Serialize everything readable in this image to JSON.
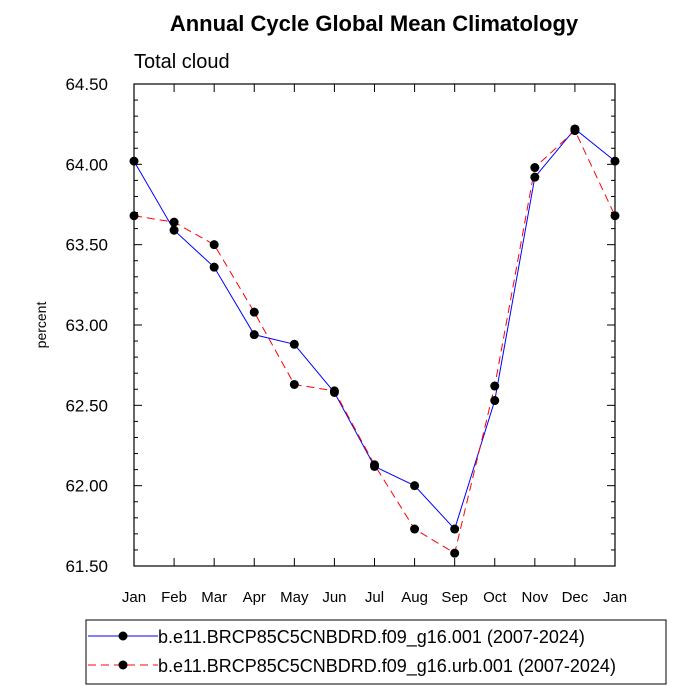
{
  "chart_data": {
    "type": "line",
    "title": "Annual Cycle Global Mean Climatology",
    "subtitle": "Total cloud",
    "xlabel": "",
    "ylabel": "percent",
    "categories": [
      "Jan",
      "Feb",
      "Mar",
      "Apr",
      "May",
      "Jun",
      "Jul",
      "Aug",
      "Sep",
      "Oct",
      "Nov",
      "Dec",
      "Jan"
    ],
    "ylim": [
      61.5,
      64.5
    ],
    "yticks": [
      "61.50",
      "62.00",
      "62.50",
      "63.00",
      "63.50",
      "64.00",
      "64.50"
    ],
    "grid": false,
    "legend_position": "bottom",
    "series": [
      {
        "name": "b.e11.BRCP85C5CNBDRD.f09_g16.001 (2007-2024)",
        "color": "#0000ff",
        "dash": "solid",
        "values": [
          64.02,
          63.59,
          63.36,
          62.94,
          62.88,
          62.58,
          62.12,
          62.0,
          61.73,
          62.53,
          63.92,
          64.22,
          64.02
        ]
      },
      {
        "name": "b.e11.BRCP85C5CNBDRD.f09_g16.urb.001 (2007-2024)",
        "color": "#ff0000",
        "dash": "dashed",
        "values": [
          63.68,
          63.64,
          63.5,
          63.08,
          62.63,
          62.59,
          62.13,
          61.73,
          61.58,
          62.62,
          63.98,
          64.21,
          63.68
        ]
      }
    ]
  }
}
